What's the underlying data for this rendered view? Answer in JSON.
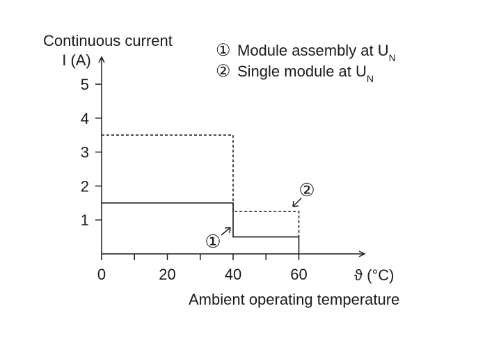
{
  "chart_data": {
    "type": "line",
    "ylabel_line1": "Continuous current",
    "ylabel_line2": "I (A)",
    "xlabel": "Ambient operating temperature",
    "x_unit": "ϑ (°C)",
    "xlim": [
      0,
      80
    ],
    "ylim": [
      0,
      5.8
    ],
    "x_ticks": [
      0,
      10,
      20,
      30,
      40,
      50,
      60
    ],
    "x_tick_labels": [
      "0",
      "",
      "20",
      "",
      "40",
      "",
      "60"
    ],
    "y_ticks": [
      1,
      2,
      3,
      4,
      5
    ],
    "y_tick_labels": [
      "1",
      "2",
      "3",
      "4",
      "5"
    ],
    "legend": [
      {
        "marker": "①",
        "text": "Module assembly at U",
        "subscript": "N"
      },
      {
        "marker": "②",
        "text": "Single module at U",
        "subscript": "N"
      }
    ],
    "series": [
      {
        "marker": "①",
        "style": "solid",
        "x": [
          0,
          40,
          40,
          60,
          60
        ],
        "y": [
          1.5,
          1.5,
          0.5,
          0.5,
          0
        ]
      },
      {
        "marker": "②",
        "style": "dashed",
        "x": [
          0,
          40,
          40,
          60,
          60
        ],
        "y": [
          3.5,
          3.5,
          1.25,
          1.25,
          0.5
        ]
      }
    ],
    "colors": {
      "line": "#1a1a1a",
      "background": "#ffffff"
    }
  }
}
